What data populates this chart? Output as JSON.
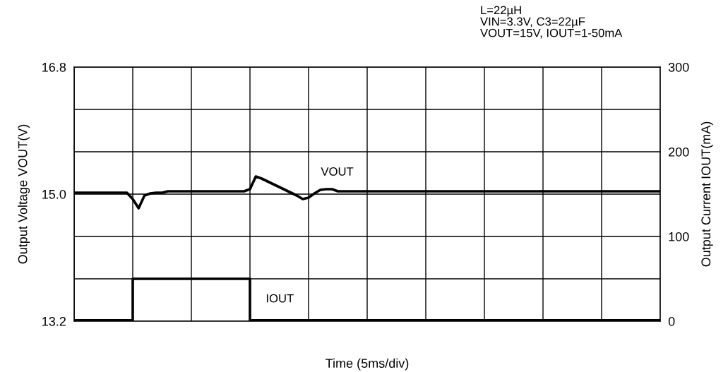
{
  "chart_data": {
    "type": "line",
    "xlabel": "Time (5ms/div)",
    "ylabel": "Output Voltage VOUT(V)",
    "y2label": "Output Current IOUT(mA)",
    "annotations": [
      "L=22µH\nVIN=3.3V, C3=22µF\nVOUT=15V, IOUT=1-50mA",
      "VOUT",
      "IOUT"
    ],
    "categories": [
      null,
      null,
      null,
      null,
      null,
      null,
      null,
      null,
      null,
      null,
      null,
      null,
      null,
      null,
      null,
      null,
      null,
      null,
      null,
      null,
      null,
      null,
      null,
      null,
      null,
      null,
      null,
      null,
      null,
      null,
      null,
      null,
      null,
      null,
      null,
      null,
      null,
      null,
      null,
      null,
      null,
      null,
      null,
      null,
      null,
      null,
      null,
      null,
      null,
      null,
      null,
      null,
      null,
      null,
      null,
      null,
      null,
      null,
      null,
      null,
      null,
      null,
      null,
      null,
      null,
      null,
      null,
      null,
      null,
      null,
      null,
      null,
      null,
      null,
      null,
      null,
      null,
      null,
      null,
      null,
      null,
      null,
      null,
      null,
      null,
      null,
      null,
      null,
      null,
      null,
      null,
      null,
      null,
      null,
      null,
      null,
      null,
      null,
      null,
      null,
      null
    ],
    "series": [
      {
        "color": "#000000",
        "values": [
          15.02,
          15.02,
          15.02,
          15.02,
          15.02,
          15.02,
          15.02,
          15.02,
          15.02,
          15.02,
          14.93,
          14.8,
          14.98,
          15.01,
          15.02,
          15.02,
          15.04,
          15.04,
          15.04,
          15.04,
          15.04,
          15.04,
          15.04,
          15.04,
          15.04,
          15.04,
          15.04,
          15.04,
          15.04,
          15.04,
          15.07,
          15.25,
          15.22,
          15.18,
          15.14,
          15.1,
          15.06,
          15.02,
          14.98,
          14.93,
          14.95,
          15.01,
          15.06,
          15.07,
          15.07,
          15.04,
          15.04,
          15.04,
          15.04,
          15.04,
          15.04,
          15.04,
          15.04,
          15.04,
          15.04,
          15.04,
          15.04,
          15.04,
          15.04,
          15.04,
          15.04,
          15.04,
          15.04,
          15.04,
          15.04,
          15.04,
          15.04,
          15.04,
          15.04,
          15.04,
          15.04,
          15.04,
          15.04,
          15.04,
          15.04,
          15.04,
          15.04,
          15.04,
          15.04,
          15.04,
          15.04,
          15.04,
          15.04,
          15.04,
          15.04,
          15.04,
          15.04,
          15.04,
          15.04,
          15.04,
          15.04,
          15.04,
          15.04,
          15.04,
          15.04,
          15.04,
          15.04,
          15.04,
          15.04,
          15.04,
          15.04
        ]
      },
      {
        "type": "step",
        "axis": "y2",
        "color": "#000000",
        "values": [
          1,
          1,
          1,
          1,
          1,
          1,
          1,
          1,
          1,
          1,
          50,
          50,
          50,
          50,
          50,
          50,
          50,
          50,
          50,
          50,
          50,
          50,
          50,
          50,
          50,
          50,
          50,
          50,
          50,
          50,
          1,
          1,
          1,
          1,
          1,
          1,
          1,
          1,
          1,
          1,
          1,
          1,
          1,
          1,
          1,
          1,
          1,
          1,
          1,
          1,
          1,
          1,
          1,
          1,
          1,
          1,
          1,
          1,
          1,
          1,
          1,
          1,
          1,
          1,
          1,
          1,
          1,
          1,
          1,
          1,
          1,
          1,
          1,
          1,
          1,
          1,
          1,
          1,
          1,
          1,
          1,
          1,
          1,
          1,
          1,
          1,
          1,
          1,
          1,
          1,
          1,
          1,
          1,
          1,
          1,
          1,
          1,
          1,
          1,
          1,
          1
        ]
      }
    ],
    "ylim": [
      13.2,
      16.8
    ],
    "yticks": [
      13.2,
      {
        "value": 13.8,
        "label": null
      },
      {
        "value": 14.4,
        "label": null
      },
      {
        "value": 15,
        "label": "15.0"
      },
      {
        "value": 15.6,
        "label": null
      },
      {
        "value": 16.2,
        "label": null
      },
      16.8
    ],
    "y2lim": [
      0,
      300
    ],
    "y2ticks": [
      0,
      {
        "value": 50,
        "label": null
      },
      100,
      {
        "value": 150,
        "label": null
      },
      200,
      {
        "value": 250,
        "label": null
      },
      300
    ],
    "grid": true,
    "legend": false
  }
}
